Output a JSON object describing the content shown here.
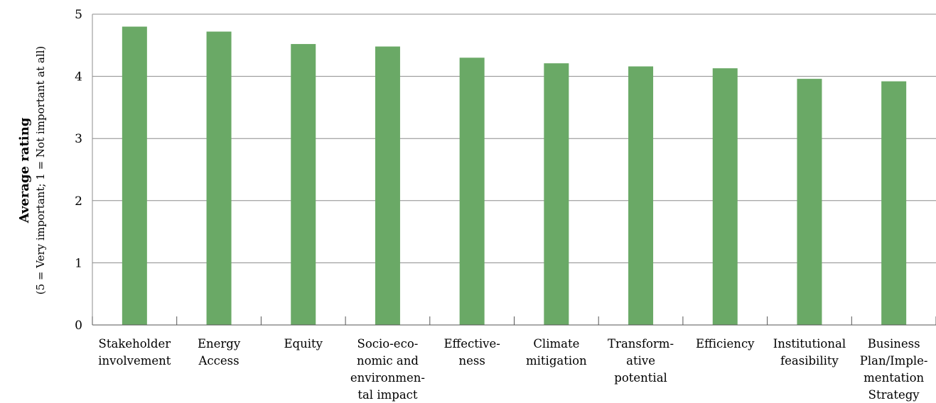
{
  "chart_data": {
    "type": "bar",
    "categories": [
      [
        "Stakeholder",
        "involvement"
      ],
      [
        "Energy",
        "Access"
      ],
      [
        "Equity"
      ],
      [
        "Socio-eco-",
        "nomic and",
        "environmen-",
        "tal impact"
      ],
      [
        "Effective-",
        "ness"
      ],
      [
        "Climate",
        "mitigation"
      ],
      [
        "Transform-",
        "ative",
        "potential"
      ],
      [
        "Efficiency"
      ],
      [
        "Institutional",
        "feasibility"
      ],
      [
        "Business",
        "Plan/Imple-",
        "mentation",
        "Strategy"
      ]
    ],
    "values": [
      4.8,
      4.72,
      4.52,
      4.48,
      4.3,
      4.21,
      4.16,
      4.13,
      3.96,
      3.92
    ],
    "ylabel": "Average rating",
    "ylabel_sub": "(5 = Very important; 1 = Not important at all)",
    "ylim": [
      0,
      5
    ],
    "yticks": [
      "0",
      "1",
      "2",
      "3",
      "4",
      "5"
    ],
    "grid": true,
    "bar_color": "#6aa966",
    "grid_color": "#8c8c8c"
  }
}
